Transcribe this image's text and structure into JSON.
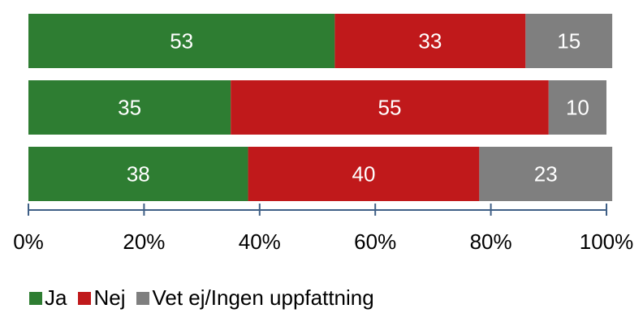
{
  "chart_data": {
    "type": "bar",
    "orientation": "horizontal",
    "stacked": true,
    "categories": [
      "",
      "",
      ""
    ],
    "series": [
      {
        "name": "Ja",
        "color": "#2e7d32",
        "values": [
          53,
          35,
          38
        ]
      },
      {
        "name": "Nej",
        "color": "#c0191b",
        "values": [
          33,
          55,
          40
        ]
      },
      {
        "name": "Vet ej/Ingen uppfattning",
        "color": "#7f7f7f",
        "values": [
          15,
          10,
          23
        ]
      }
    ],
    "xlim": [
      0,
      100
    ],
    "xticks": [
      "0%",
      "20%",
      "40%",
      "60%",
      "80%",
      "100%"
    ],
    "title": "",
    "xlabel": "",
    "ylabel": "",
    "grid": false,
    "legend_position": "bottom-left"
  }
}
